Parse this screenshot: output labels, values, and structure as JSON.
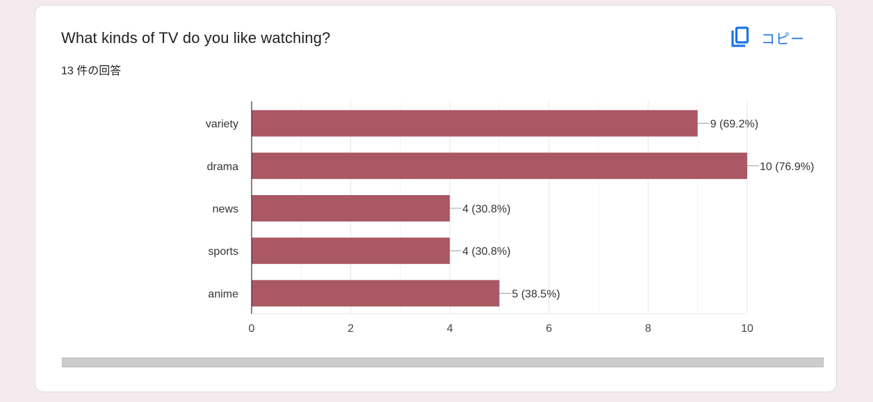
{
  "card": {
    "title": "What kinds of TV do you like watching?",
    "response_count": "13 件の回答",
    "copy_label": "コピー",
    "copy_icon": "copy-icon"
  },
  "colors": {
    "bar": "#aa5864",
    "accent": "#1a73e8",
    "grid": "#ececec"
  },
  "chart_data": {
    "type": "bar",
    "orientation": "horizontal",
    "categories": [
      "variety",
      "drama",
      "news",
      "sports",
      "anime"
    ],
    "values": [
      9,
      10,
      4,
      4,
      5
    ],
    "labels": [
      "9 (69.2%)",
      "10 (76.9%)",
      "4 (30.8%)",
      "4 (30.8%)",
      "5 (38.5%)"
    ],
    "xlim": [
      0,
      10
    ],
    "xticks": [
      0,
      2,
      4,
      6,
      8,
      10
    ],
    "grid": true,
    "legend": "none"
  }
}
